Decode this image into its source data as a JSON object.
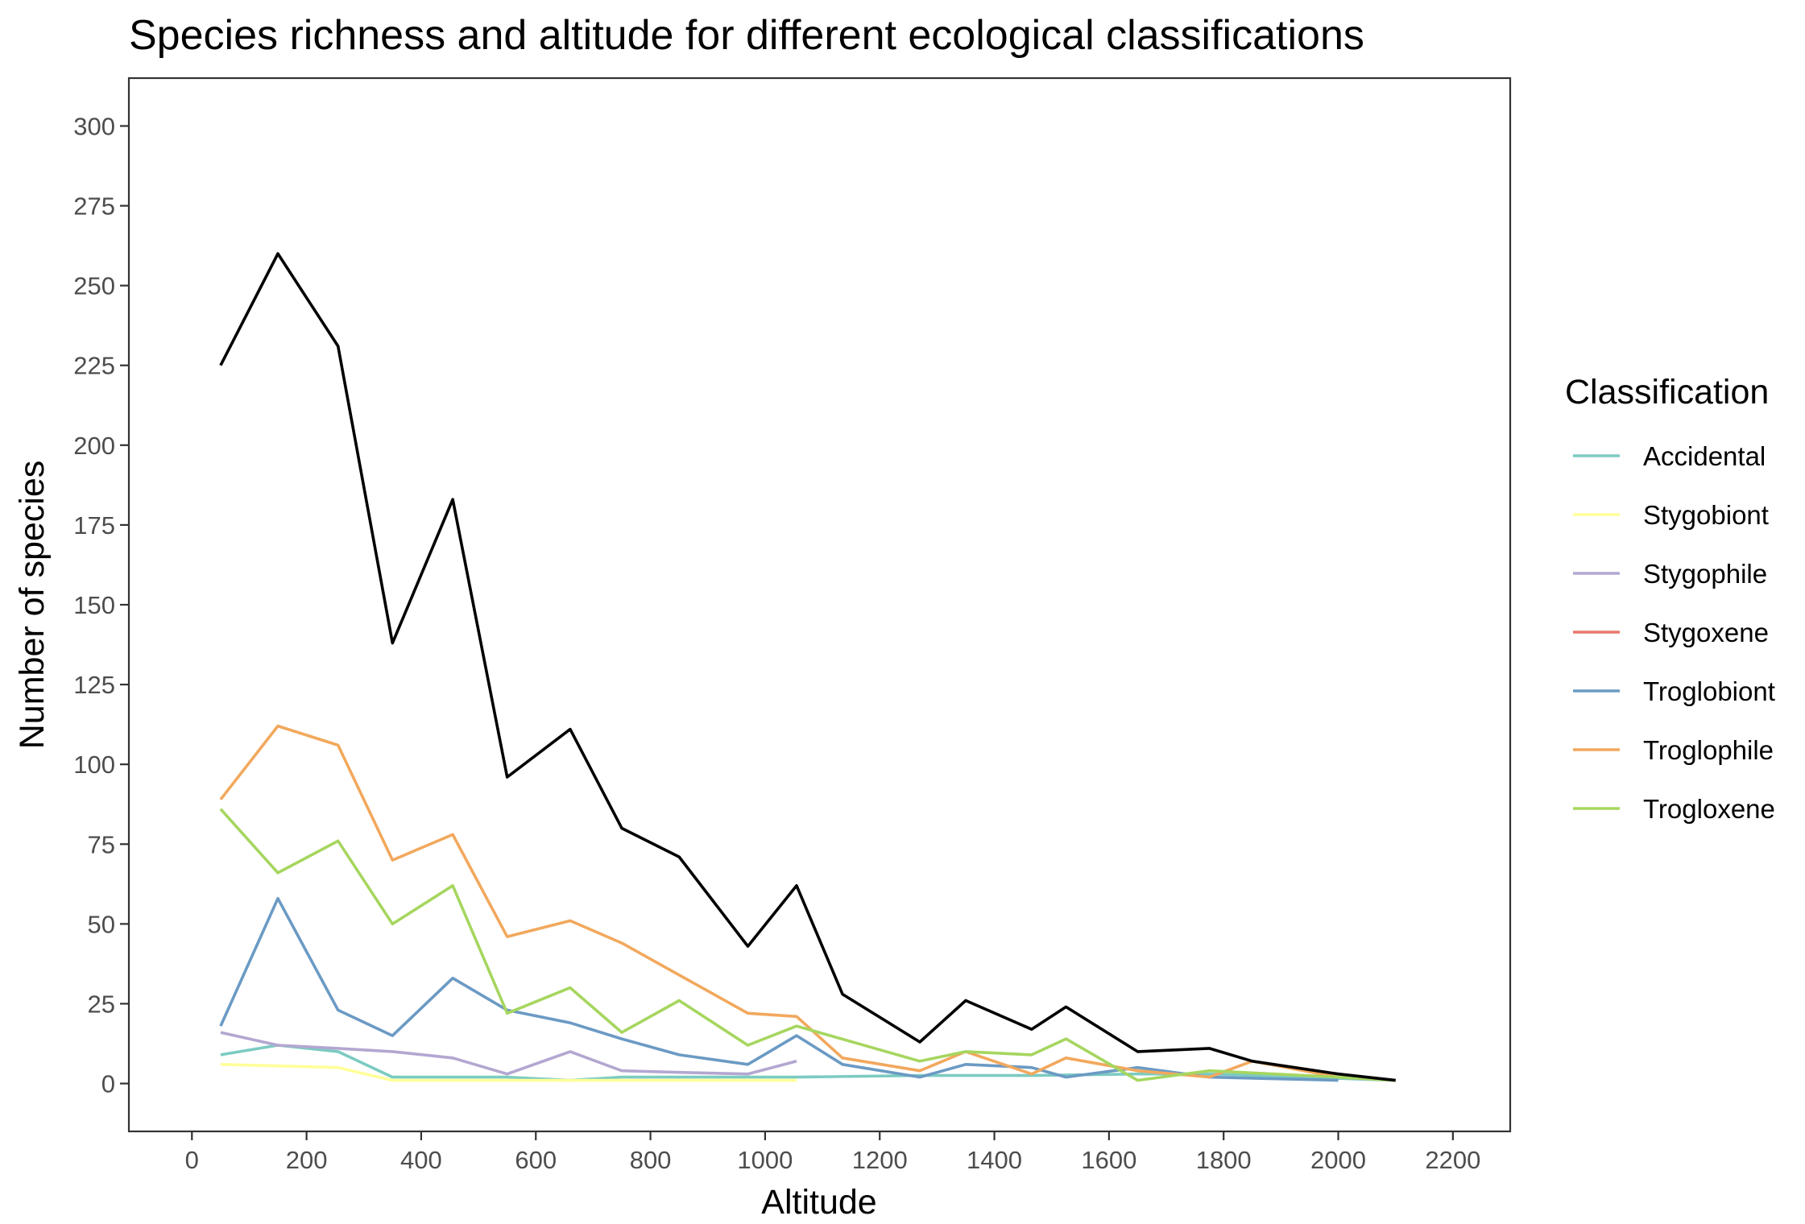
{
  "chart_data": {
    "type": "line",
    "title": "Species richness and altitude for different ecological classifications",
    "xlabel": "Altitude",
    "ylabel": "Number of species",
    "xlim": [
      -110,
      2300
    ],
    "ylim": [
      -15,
      315
    ],
    "x_ticks": [
      0,
      200,
      400,
      600,
      800,
      1000,
      1200,
      1400,
      1600,
      1800,
      2000,
      2200
    ],
    "y_ticks": [
      0,
      25,
      50,
      75,
      100,
      125,
      150,
      175,
      200,
      225,
      250,
      275,
      300
    ],
    "grid": false,
    "legend": {
      "title": "Classification",
      "position": "right"
    },
    "total_series": {
      "color": "#000000",
      "points": [
        [
          50,
          225
        ],
        [
          150,
          260
        ],
        [
          255,
          231
        ],
        [
          350,
          138
        ],
        [
          455,
          183
        ],
        [
          550,
          96
        ],
        [
          660,
          111
        ],
        [
          750,
          80
        ],
        [
          850,
          71
        ],
        [
          970,
          43
        ],
        [
          1055,
          62
        ],
        [
          1135,
          28
        ],
        [
          1270,
          13
        ],
        [
          1350,
          26
        ],
        [
          1465,
          17
        ],
        [
          1525,
          24
        ],
        [
          1650,
          10
        ],
        [
          1775,
          11
        ],
        [
          1850,
          7
        ],
        [
          2000,
          3
        ],
        [
          2100,
          1
        ]
      ]
    },
    "series": [
      {
        "name": "Accidental",
        "color": "#7ccbc1",
        "points": [
          [
            50,
            9
          ],
          [
            150,
            12
          ],
          [
            255,
            10
          ],
          [
            350,
            2
          ],
          [
            455,
            2
          ],
          [
            550,
            2
          ],
          [
            660,
            1
          ],
          [
            750,
            2
          ],
          [
            850,
            2
          ],
          [
            970,
            2
          ],
          [
            1055,
            2
          ],
          [
            1270,
            2.5
          ],
          [
            1470,
            2.5
          ],
          [
            1650,
            3
          ],
          [
            1775,
            3
          ],
          [
            2100,
            1
          ]
        ]
      },
      {
        "name": "Stygobiont",
        "color": "#ffff99",
        "points": [
          [
            50,
            6
          ],
          [
            255,
            5
          ],
          [
            350,
            1
          ],
          [
            455,
            1
          ],
          [
            550,
            1
          ],
          [
            660,
            1
          ],
          [
            750,
            1
          ],
          [
            850,
            1
          ],
          [
            970,
            1
          ],
          [
            1055,
            1
          ]
        ]
      },
      {
        "name": "Stygophile",
        "color": "#b3a7d1",
        "points": [
          [
            50,
            16
          ],
          [
            150,
            12
          ],
          [
            255,
            11
          ],
          [
            350,
            10
          ],
          [
            455,
            8
          ],
          [
            550,
            3
          ],
          [
            660,
            10
          ],
          [
            750,
            4
          ],
          [
            850,
            3.5
          ],
          [
            970,
            3
          ],
          [
            1055,
            7
          ]
        ]
      },
      {
        "name": "Stygoxene",
        "color": "#e8776c",
        "points": []
      },
      {
        "name": "Troglobiont",
        "color": "#6b9ac4",
        "points": [
          [
            50,
            18
          ],
          [
            150,
            58
          ],
          [
            255,
            23
          ],
          [
            350,
            15
          ],
          [
            455,
            33
          ],
          [
            550,
            23
          ],
          [
            660,
            19
          ],
          [
            750,
            14
          ],
          [
            850,
            9
          ],
          [
            970,
            6
          ],
          [
            1055,
            15
          ],
          [
            1135,
            6
          ],
          [
            1270,
            2
          ],
          [
            1350,
            6
          ],
          [
            1465,
            5
          ],
          [
            1525,
            2
          ],
          [
            1650,
            5
          ],
          [
            1775,
            2
          ],
          [
            2000,
            1
          ]
        ]
      },
      {
        "name": "Troglophile",
        "color": "#f2a85d",
        "points": [
          [
            50,
            89
          ],
          [
            150,
            112
          ],
          [
            255,
            106
          ],
          [
            350,
            70
          ],
          [
            455,
            78
          ],
          [
            550,
            46
          ],
          [
            660,
            51
          ],
          [
            750,
            44
          ],
          [
            850,
            34
          ],
          [
            970,
            22
          ],
          [
            1055,
            21
          ],
          [
            1135,
            8
          ],
          [
            1270,
            4
          ],
          [
            1350,
            10
          ],
          [
            1465,
            3
          ],
          [
            1525,
            8
          ],
          [
            1650,
            4
          ],
          [
            1775,
            2
          ],
          [
            1850,
            7
          ],
          [
            2000,
            2
          ],
          [
            2100,
            1
          ]
        ]
      },
      {
        "name": "Trogloxene",
        "color": "#a6d65f",
        "points": [
          [
            50,
            86
          ],
          [
            150,
            66
          ],
          [
            255,
            76
          ],
          [
            350,
            50
          ],
          [
            455,
            62
          ],
          [
            550,
            22
          ],
          [
            660,
            30
          ],
          [
            750,
            16
          ],
          [
            850,
            26
          ],
          [
            970,
            12
          ],
          [
            1055,
            18
          ],
          [
            1270,
            7
          ],
          [
            1350,
            10
          ],
          [
            1465,
            9
          ],
          [
            1525,
            14
          ],
          [
            1650,
            1
          ],
          [
            1775,
            4
          ],
          [
            2000,
            2
          ],
          [
            2100,
            1
          ]
        ]
      }
    ]
  }
}
